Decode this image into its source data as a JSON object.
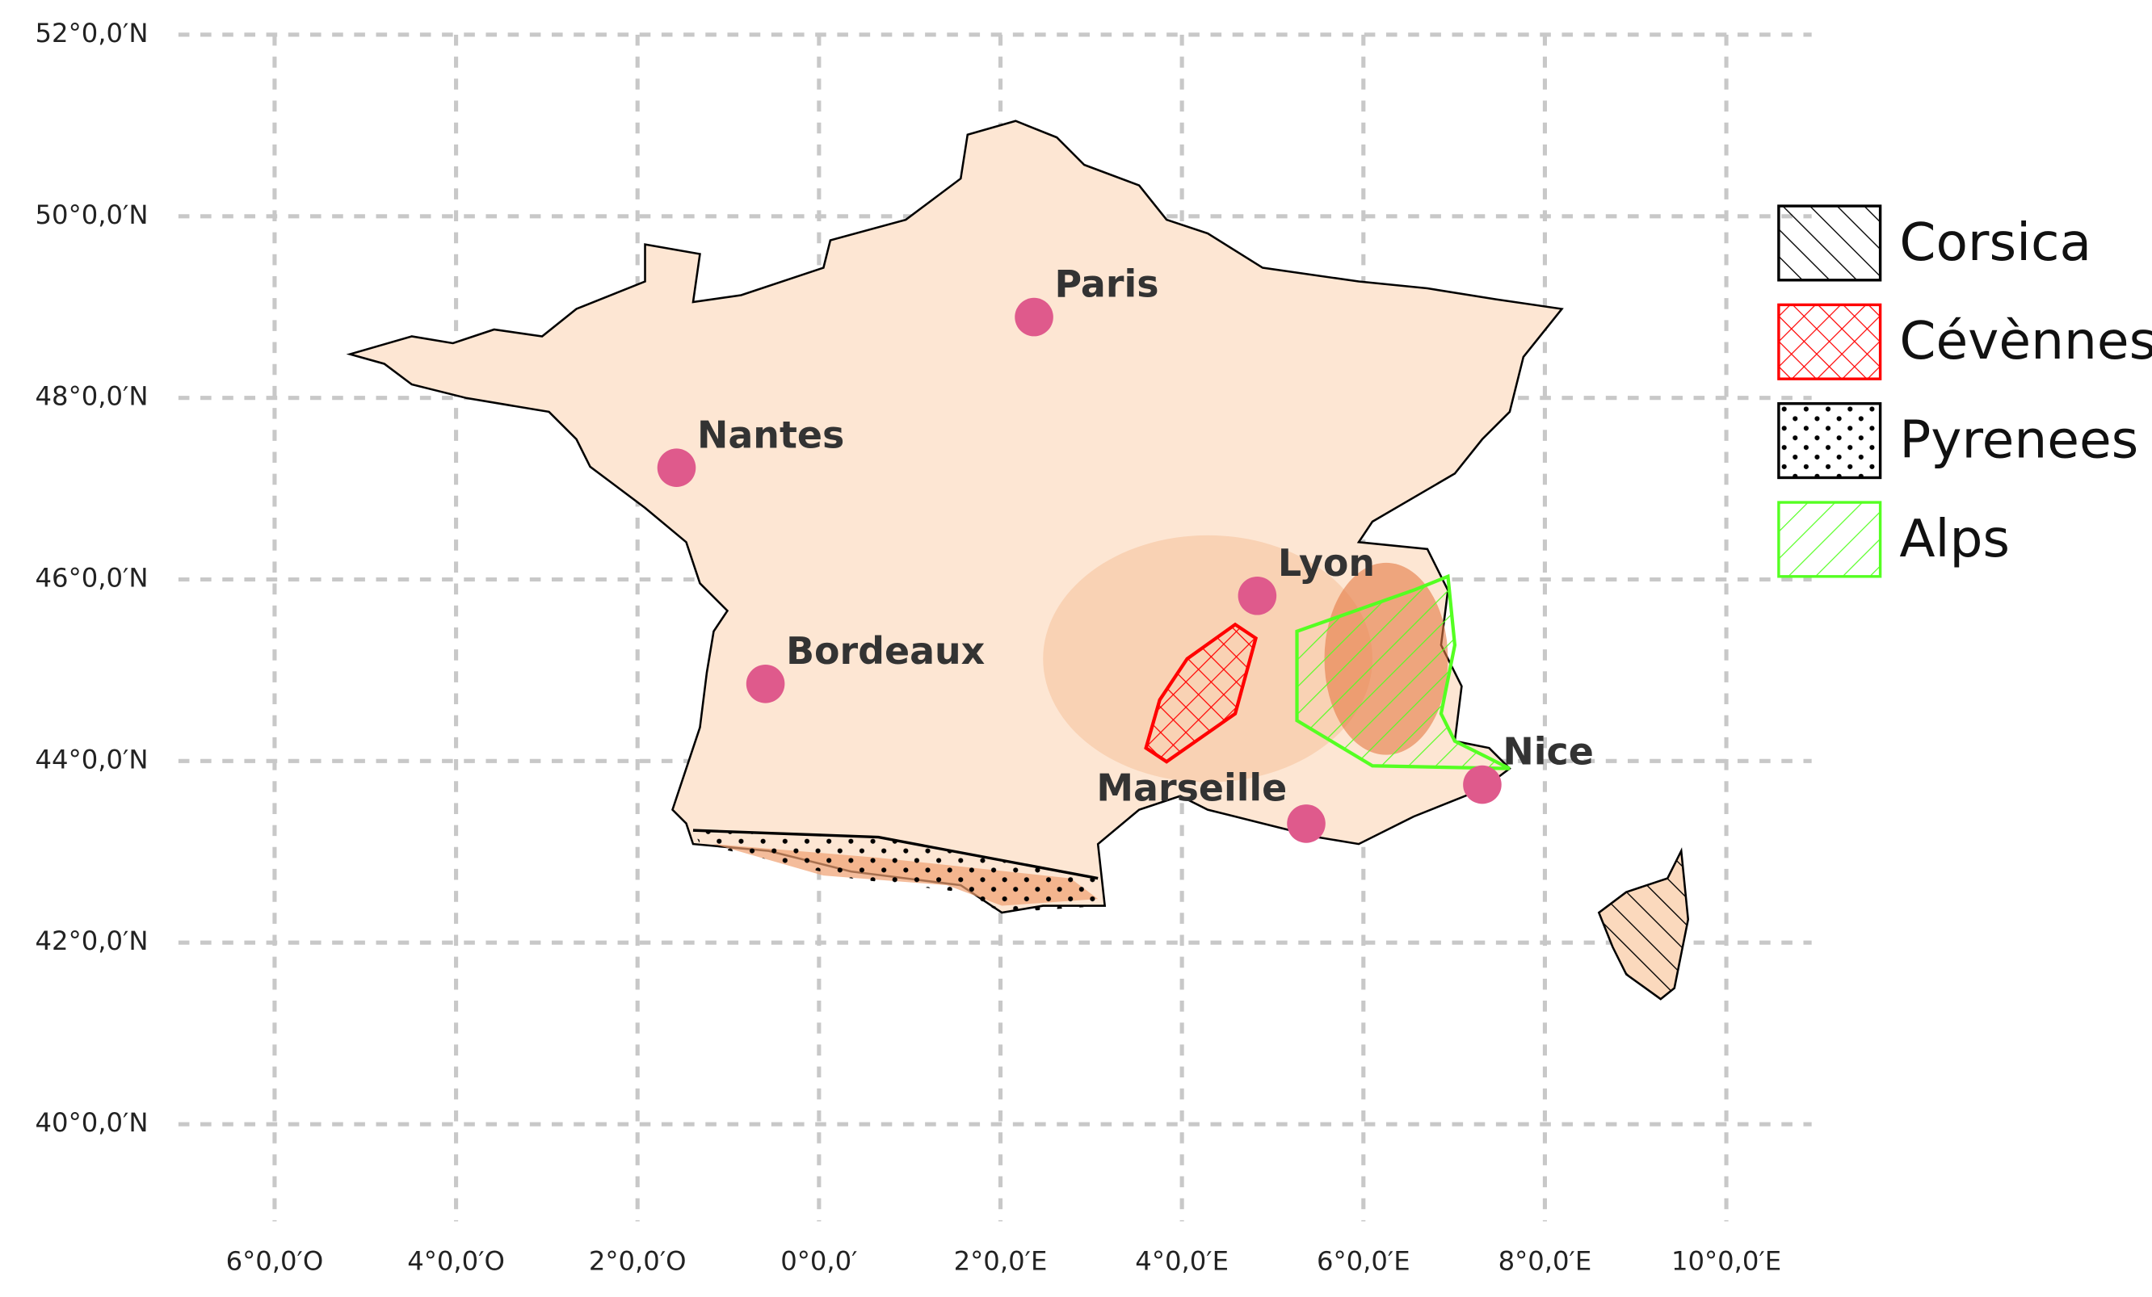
{
  "map": {
    "xlim": [
      -7.06,
      10.94
    ],
    "ylim": [
      38.93,
      52.38
    ],
    "xticks": [
      {
        "value": -6,
        "label": "6°0,0′O"
      },
      {
        "value": -4,
        "label": "4°0,0′O"
      },
      {
        "value": -2,
        "label": "2°0,0′O"
      },
      {
        "value": 0,
        "label": "0°0,0′"
      },
      {
        "value": 2,
        "label": "2°0,0′E"
      },
      {
        "value": 4,
        "label": "4°0,0′E"
      },
      {
        "value": 6,
        "label": "6°0,0′E"
      },
      {
        "value": 8,
        "label": "8°0,0′E"
      },
      {
        "value": 10,
        "label": "10°0,0′E"
      }
    ],
    "yticks": [
      {
        "value": 52,
        "label": "52°0,0′N"
      },
      {
        "value": 50,
        "label": "50°0,0′N"
      },
      {
        "value": 48,
        "label": "48°0,0′N"
      },
      {
        "value": 46,
        "label": "46°0,0′N"
      },
      {
        "value": 44,
        "label": "44°0,0′N"
      },
      {
        "value": 42,
        "label": "42°0,0′N"
      },
      {
        "value": 40,
        "label": "40°0,0′N"
      }
    ],
    "cities": [
      {
        "name": "Paris",
        "lon": 2.37,
        "lat": 48.89
      },
      {
        "name": "Nantes",
        "lon": -1.57,
        "lat": 47.23
      },
      {
        "name": "Bordeaux",
        "lon": -0.59,
        "lat": 44.85
      },
      {
        "name": "Lyon",
        "lon": 4.83,
        "lat": 45.82
      },
      {
        "name": "Marseille",
        "lon": 5.37,
        "lat": 43.31
      },
      {
        "name": "Nice",
        "lon": 7.31,
        "lat": 43.74
      }
    ],
    "legend": [
      "Corsica",
      "Cévènnes",
      "Pyrenees",
      "Alps"
    ]
  }
}
